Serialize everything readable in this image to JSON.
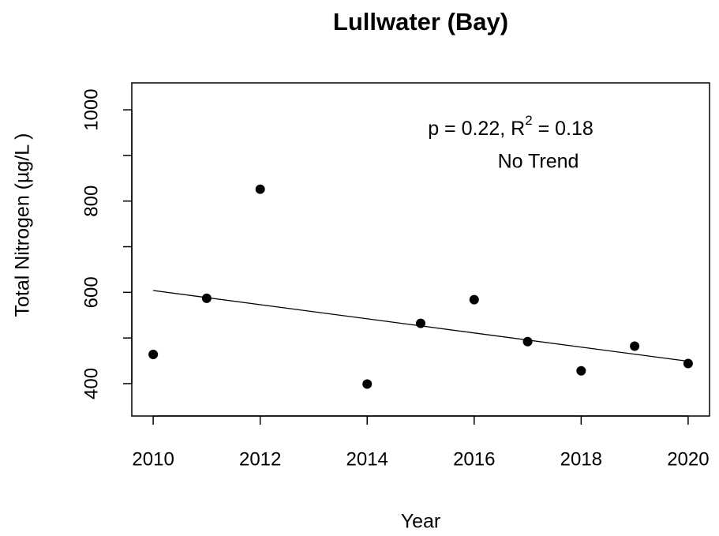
{
  "chart_data": {
    "type": "scatter",
    "title": "Lullwater (Bay)",
    "x_label": "Year",
    "y_label": "Total Nitrogen (µg/L )",
    "annotation_line1": [
      "p = 0.22, R",
      "2",
      " = 0.18"
    ],
    "annotation_line2": "No Trend",
    "x": [
      2010,
      2011,
      2012,
      2014,
      2015,
      2016,
      2017,
      2018,
      2019,
      2020
    ],
    "values": [
      464,
      587,
      826,
      399,
      532,
      584,
      492,
      428,
      482,
      444
    ],
    "color": "#000000",
    "trend": {
      "x": [
        2010,
        2020
      ],
      "values": [
        604,
        449
      ]
    },
    "xlim": [
      2009.6,
      2020.4
    ],
    "ylim": [
      329,
      1059
    ],
    "xticks": [
      2010,
      2012,
      2014,
      2016,
      2018,
      2020
    ],
    "yticks": [
      400,
      600,
      800,
      1000
    ],
    "y_minor_ticks": [
      500,
      700,
      900
    ]
  }
}
